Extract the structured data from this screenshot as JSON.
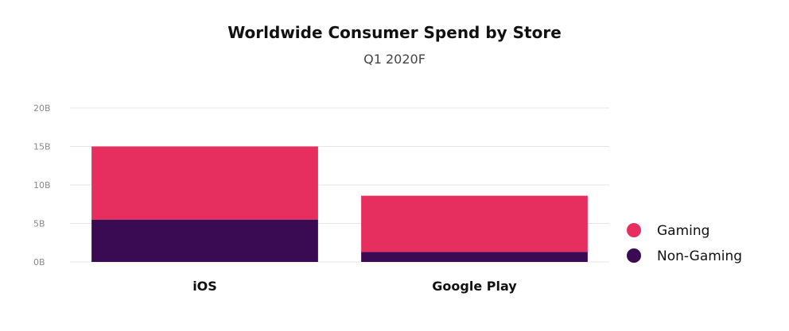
{
  "chart_data": {
    "type": "bar",
    "stacked": true,
    "title": "Worldwide Consumer Spend by Store",
    "subtitle": "Q1 2020F",
    "categories": [
      "iOS",
      "Google Play"
    ],
    "series": [
      {
        "name": "Non-Gaming",
        "values": [
          5.5,
          1.3
        ],
        "color": "#3a0a52"
      },
      {
        "name": "Gaming",
        "values": [
          9.5,
          7.3
        ],
        "color": "#e62e5f"
      }
    ],
    "ylim": [
      0,
      20
    ],
    "yticks": [
      0,
      5,
      10,
      15,
      20
    ],
    "ytick_labels": [
      "0B",
      "5B",
      "10B",
      "15B",
      "20B"
    ],
    "grid": true,
    "legend": {
      "placement": "right",
      "entries": [
        "Gaming",
        "Non-Gaming"
      ]
    }
  }
}
